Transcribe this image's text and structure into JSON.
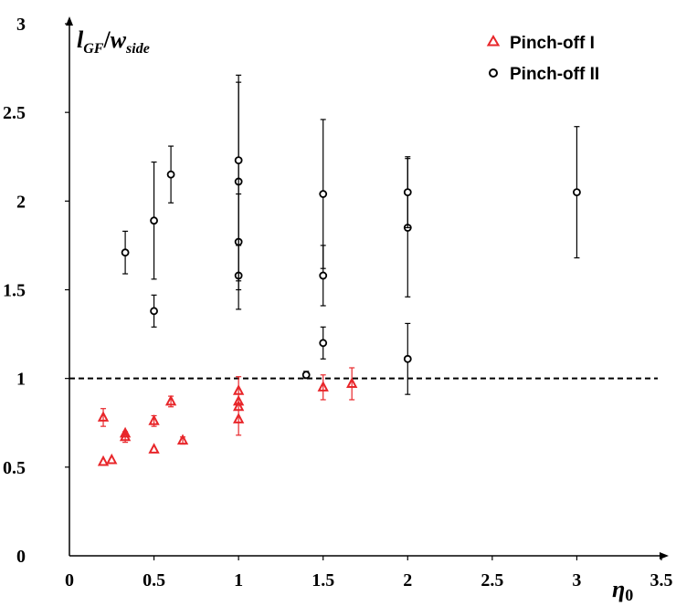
{
  "chart_data": {
    "type": "scatter",
    "xlabel_base": "η",
    "xlabel_sub": "0",
    "ylabel_base": "l",
    "ylabel_sub": "GF",
    "ylabel_sep": "/",
    "ylabel_base2": "w",
    "ylabel_sub2": "side",
    "xlim": [
      0,
      3.5
    ],
    "ylim": [
      0,
      3
    ],
    "x_ticks": [
      0,
      0.5,
      1,
      1.5,
      2,
      2.5,
      3,
      3.5
    ],
    "x_tick_labels": [
      "0",
      "0.5",
      "1",
      "1.5",
      "2",
      "2.5",
      "3",
      "3.5"
    ],
    "y_ticks": [
      0,
      0.5,
      1,
      1.5,
      2,
      2.5,
      3
    ],
    "y_tick_labels": [
      "0",
      "0.5",
      "1",
      "1.5",
      "2",
      "2.5",
      "3"
    ],
    "reference_line": {
      "y": 1,
      "style": "dashed",
      "color": "#000000"
    },
    "legend_position": "top-right",
    "series": [
      {
        "name": "Pinch-off I",
        "marker": "triangle",
        "color": "#e8262a",
        "points": [
          {
            "x": 0.2,
            "y": 0.53,
            "err": 0.0
          },
          {
            "x": 0.2,
            "y": 0.78,
            "err": 0.05
          },
          {
            "x": 0.25,
            "y": 0.54,
            "err": 0.0
          },
          {
            "x": 0.33,
            "y": 0.67,
            "err": 0.03
          },
          {
            "x": 0.33,
            "y": 0.69,
            "err": 0.0
          },
          {
            "x": 0.5,
            "y": 0.6,
            "err": 0.0
          },
          {
            "x": 0.5,
            "y": 0.76,
            "err": 0.03
          },
          {
            "x": 0.6,
            "y": 0.87,
            "err": 0.03
          },
          {
            "x": 0.67,
            "y": 0.65,
            "err": 0.02
          },
          {
            "x": 1.0,
            "y": 0.77,
            "err": 0.09
          },
          {
            "x": 1.0,
            "y": 0.84,
            "err": 0.0
          },
          {
            "x": 1.0,
            "y": 0.87,
            "err": 0.0
          },
          {
            "x": 1.0,
            "y": 0.93,
            "err": 0.08
          },
          {
            "x": 1.5,
            "y": 0.95,
            "err": 0.07
          },
          {
            "x": 1.67,
            "y": 0.97,
            "err": 0.09
          }
        ]
      },
      {
        "name": "Pinch-off II",
        "marker": "circle",
        "color": "#000000",
        "points": [
          {
            "x": 0.33,
            "y": 1.71,
            "err": 0.12
          },
          {
            "x": 0.5,
            "y": 1.38,
            "err": 0.09
          },
          {
            "x": 0.5,
            "y": 1.89,
            "err": 0.33
          },
          {
            "x": 0.6,
            "y": 2.15,
            "err": 0.16
          },
          {
            "x": 1.0,
            "y": 1.58,
            "err": 0.19
          },
          {
            "x": 1.0,
            "y": 1.77,
            "err": 0.27
          },
          {
            "x": 1.0,
            "y": 2.11,
            "err": 0.56
          },
          {
            "x": 1.0,
            "y": 2.23,
            "err": 0.48
          },
          {
            "x": 1.4,
            "y": 1.02,
            "err": 0.02
          },
          {
            "x": 1.5,
            "y": 1.2,
            "err": 0.09
          },
          {
            "x": 1.5,
            "y": 1.58,
            "err": 0.17
          },
          {
            "x": 1.5,
            "y": 2.04,
            "err": 0.42
          },
          {
            "x": 2.0,
            "y": 1.11,
            "err": 0.2
          },
          {
            "x": 2.0,
            "y": 1.85,
            "err": 0.39
          },
          {
            "x": 2.0,
            "y": 2.05,
            "err": 0.2
          },
          {
            "x": 3.0,
            "y": 2.05,
            "err": 0.37
          }
        ]
      }
    ]
  }
}
